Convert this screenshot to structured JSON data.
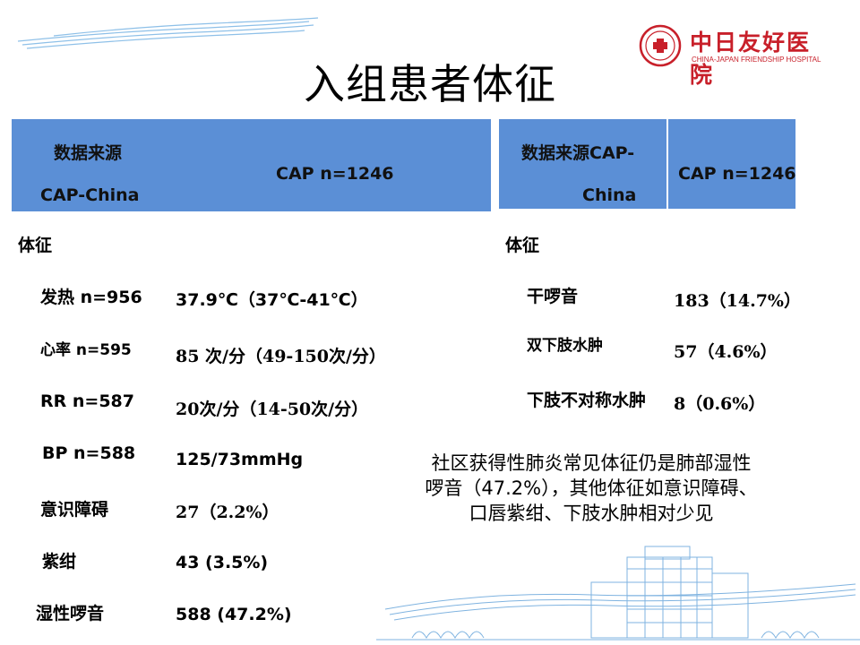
{
  "title": "入组患者体征",
  "logo": {
    "cn": "中日友好医院",
    "en": "CHINA-JAPAN FRIENDSHIP HOSPITAL",
    "seal_text": "中日友好医院"
  },
  "left_table": {
    "header_col1_line1": "数据来源",
    "header_col1_line2": "CAP-China",
    "header_col2": "CAP  n=1246",
    "section_label": "体征",
    "rows": [
      {
        "label": "发热 n=956",
        "value": "37.9℃（37℃-41℃）"
      },
      {
        "label": "心率 n=595",
        "value": "85 次/分（49-150次/分）"
      },
      {
        "label": "RR n=587",
        "value": "20次/分（14-50次/分）"
      },
      {
        "label": "BP n=588",
        "value": "125/73mmHg"
      },
      {
        "label": "意识障碍",
        "value": "27（2.2%）"
      },
      {
        "label": "紫绀",
        "value": "43 (3.5%)"
      },
      {
        "label": "湿性啰音",
        "value": "588 (47.2%)"
      }
    ]
  },
  "right_table": {
    "header_col1_line1": "数据来源CAP-",
    "header_col1_line2": "China",
    "header_col2": "CAP  n=1246",
    "section_label": "体征",
    "rows": [
      {
        "label": "干啰音",
        "value": "183（14.7%）"
      },
      {
        "label": "双下肢水肿",
        "value": "57（4.6%）"
      },
      {
        "label": "下肢不对称水肿",
        "value": "8（0.6%）"
      }
    ]
  },
  "note": {
    "line1": "社区获得性肺炎常见体征仍是肺部湿性",
    "line2": "啰音（47.2%），其他体征如意识障碍、",
    "line3": "口唇紫绀、下肢水肿相对少见"
  },
  "colors": {
    "header_bg": "#5b8fd6",
    "logo_red": "#c8202a",
    "line_blue": "#7fb3e0"
  }
}
